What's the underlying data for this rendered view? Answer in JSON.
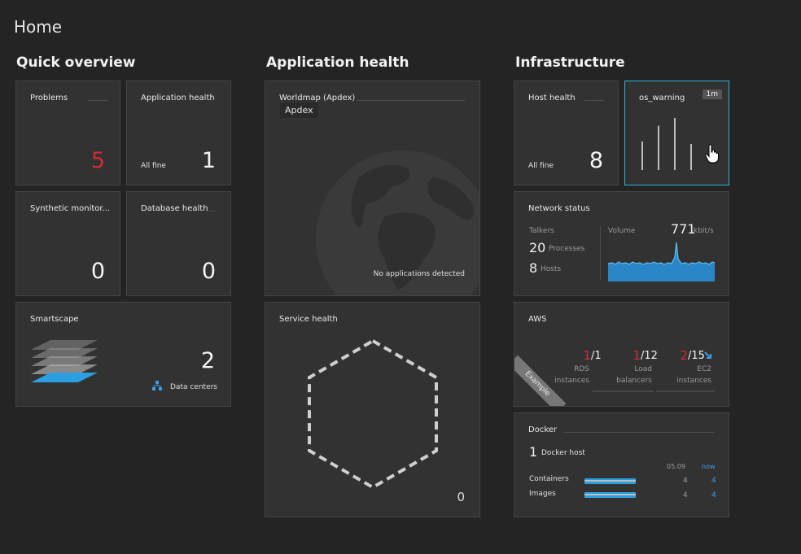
{
  "page": {
    "title": "Home"
  },
  "columns": {
    "quick_overview": "Quick overview",
    "application_health": "Application health",
    "infrastructure": "Infrastructure"
  },
  "tiles": {
    "problems": {
      "title": "Problems",
      "value": "5"
    },
    "app_health": {
      "title": "Application health",
      "status": "All fine",
      "value": "1"
    },
    "synthetic": {
      "title": "Synthetic monitor...",
      "value": "0"
    },
    "database": {
      "title": "Database health",
      "value": "0"
    },
    "smartscape": {
      "title": "Smartscape",
      "value": "2",
      "label": "Data centers"
    },
    "worldmap": {
      "title": "Worldmap (Apdex)",
      "badge": "Apdex",
      "message": "No applications detected"
    },
    "service_health": {
      "title": "Service health",
      "value": "0"
    },
    "host_health": {
      "title": "Host health",
      "status": "All fine",
      "value": "8"
    },
    "os_warning": {
      "title": "os_warning",
      "badge": "1m",
      "bar_levels": [
        0.55,
        0.85,
        1.0,
        0.5
      ]
    },
    "network": {
      "title": "Network status",
      "talkers_label": "Talkers",
      "processes_value": "20",
      "processes_label": "Processes",
      "hosts_value": "8",
      "hosts_label": "Hosts",
      "volume_label": "Volume",
      "volume_value": "771",
      "volume_unit": "kbit/s"
    },
    "aws": {
      "title": "AWS",
      "ribbon": "Example",
      "items": [
        {
          "num": "1",
          "den": "/1",
          "label1": "RDS",
          "label2": "instances"
        },
        {
          "num": "1",
          "den": "/12",
          "label1": "Load",
          "label2": "balancers"
        },
        {
          "num": "2",
          "den": "/15",
          "label1": "EC2",
          "label2": "instances"
        }
      ]
    },
    "docker": {
      "title": "Docker",
      "host_value": "1",
      "host_label": "Docker host",
      "col_prev": "05.09",
      "col_now": "now",
      "rows": [
        {
          "label": "Containers",
          "prev": "4",
          "now": "4"
        },
        {
          "label": "Images",
          "prev": "4",
          "now": "4"
        }
      ]
    }
  },
  "colors": {
    "background": "#242424",
    "tile": "#323232",
    "accent": "#2ab6d9",
    "problem_red": "#d42b3a",
    "link_blue": "#3d9de6"
  },
  "icons": {
    "data_centers": "hierarchy-icon",
    "pointer": "hand-cursor-icon",
    "trend": "arrow-down-right-icon",
    "smartscape": "layers-icon",
    "worldmap": "globe-icon"
  }
}
